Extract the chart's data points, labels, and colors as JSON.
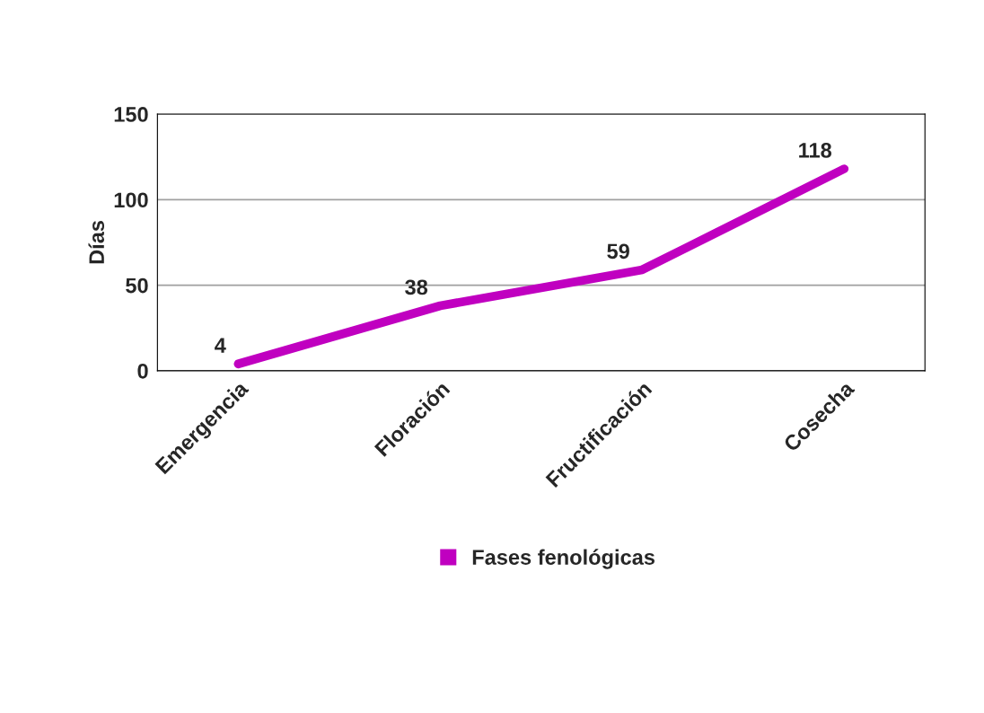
{
  "chart_data": {
    "type": "line",
    "ylabel": "Días",
    "categories": [
      "Emergencia",
      "Floración",
      "Fructificación",
      "Cosecha"
    ],
    "series": [
      {
        "name": "Fases fenológicas",
        "color": "#c000c0",
        "values": [
          4,
          38,
          59,
          118
        ]
      }
    ],
    "ylim": [
      0,
      150
    ],
    "yticks": [
      0,
      50,
      100,
      150
    ],
    "grid": "y",
    "data_labels": true,
    "legend": "bottom",
    "marker": "none",
    "line_style": "solid"
  }
}
